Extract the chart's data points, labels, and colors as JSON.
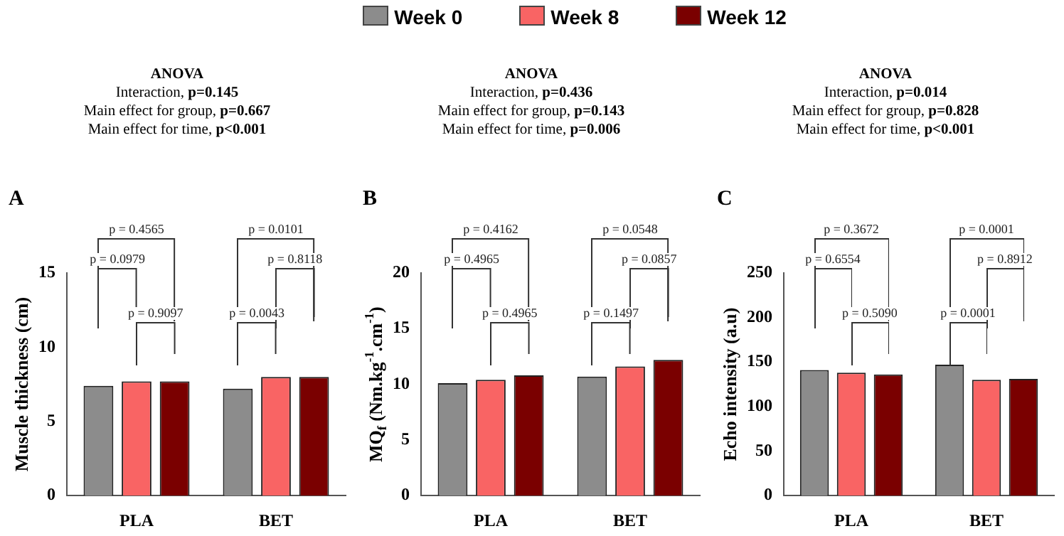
{
  "chart_data": [
    {
      "type": "bar",
      "title": "ANOVA",
      "ylabel": "Muscle thickness (cm)",
      "categories": [
        "PLA",
        "BET"
      ],
      "series": [
        {
          "name": "Week 0",
          "color": "#8c8c8c",
          "values": [
            7.4,
            7.2
          ]
        },
        {
          "name": "Week 8",
          "color": "#f96464",
          "values": [
            7.7,
            8.0
          ]
        },
        {
          "name": "Week 12",
          "color": "#7a0000",
          "values": [
            7.7,
            8.0
          ]
        }
      ],
      "ylim": [
        0,
        15
      ],
      "yticks": [
        0,
        5,
        10,
        15
      ],
      "legend": "top",
      "grid": false,
      "annotations": [
        "A",
        "Interaction, p=0.145",
        "Main effect for group, p=0.667",
        "Main effect for time, p<0.001",
        "p = 0.4565",
        "p = 0.0979",
        "p = 0.9097",
        "p = 0.0101",
        "p = 0.0043",
        "p = 0.8118"
      ]
    },
    {
      "type": "bar",
      "title": "ANOVA",
      "ylabel": "MQ$_{f}$ (Nm.kg$^{-1}$.cm$^{-1}$)",
      "categories": [
        "PLA",
        "BET"
      ],
      "series": [
        {
          "color": "#8c8c8c",
          "values": [
            10.1,
            10.7
          ]
        },
        {
          "color": "#f96464",
          "values": [
            10.4,
            11.6
          ]
        },
        {
          "color": "#7a0000",
          "values": [
            10.8,
            12.2
          ]
        }
      ],
      "ylim": [
        0,
        20
      ],
      "yticks": [
        0,
        5,
        10,
        15,
        20
      ],
      "grid": false,
      "annotations": [
        "B",
        "Interaction, p=0.436",
        "Main effect for group, p=0.143",
        "Main effect for time, p=0.006",
        "p = 0.4162",
        "p = 0.4965",
        "p = 0.4965",
        "p = 0.0548",
        "p = 0.1497",
        "p = 0.0857"
      ]
    },
    {
      "type": "bar",
      "title": "ANOVA",
      "ylabel": "Echo intensity (a.u)",
      "categories": [
        "PLA",
        "BET"
      ],
      "series": [
        {
          "color": "#8c8c8c",
          "values": [
            141,
            147
          ]
        },
        {
          "color": "#f96464",
          "values": [
            138,
            130
          ]
        },
        {
          "color": "#7a0000",
          "values": [
            136,
            131
          ]
        }
      ],
      "ylim": [
        0,
        250
      ],
      "yticks": [
        0,
        50,
        100,
        150,
        200,
        250
      ],
      "grid": false,
      "annotations": [
        "C",
        "Interaction, p=0.014",
        "Main effect for group, p=0.828",
        "Main effect for time, p<0.001",
        "p = 0.3672",
        "p = 0.6554",
        "p = 0.5090",
        "p = 0.0001",
        "p = 0.0001",
        "p = 0.8912"
      ]
    }
  ]
}
